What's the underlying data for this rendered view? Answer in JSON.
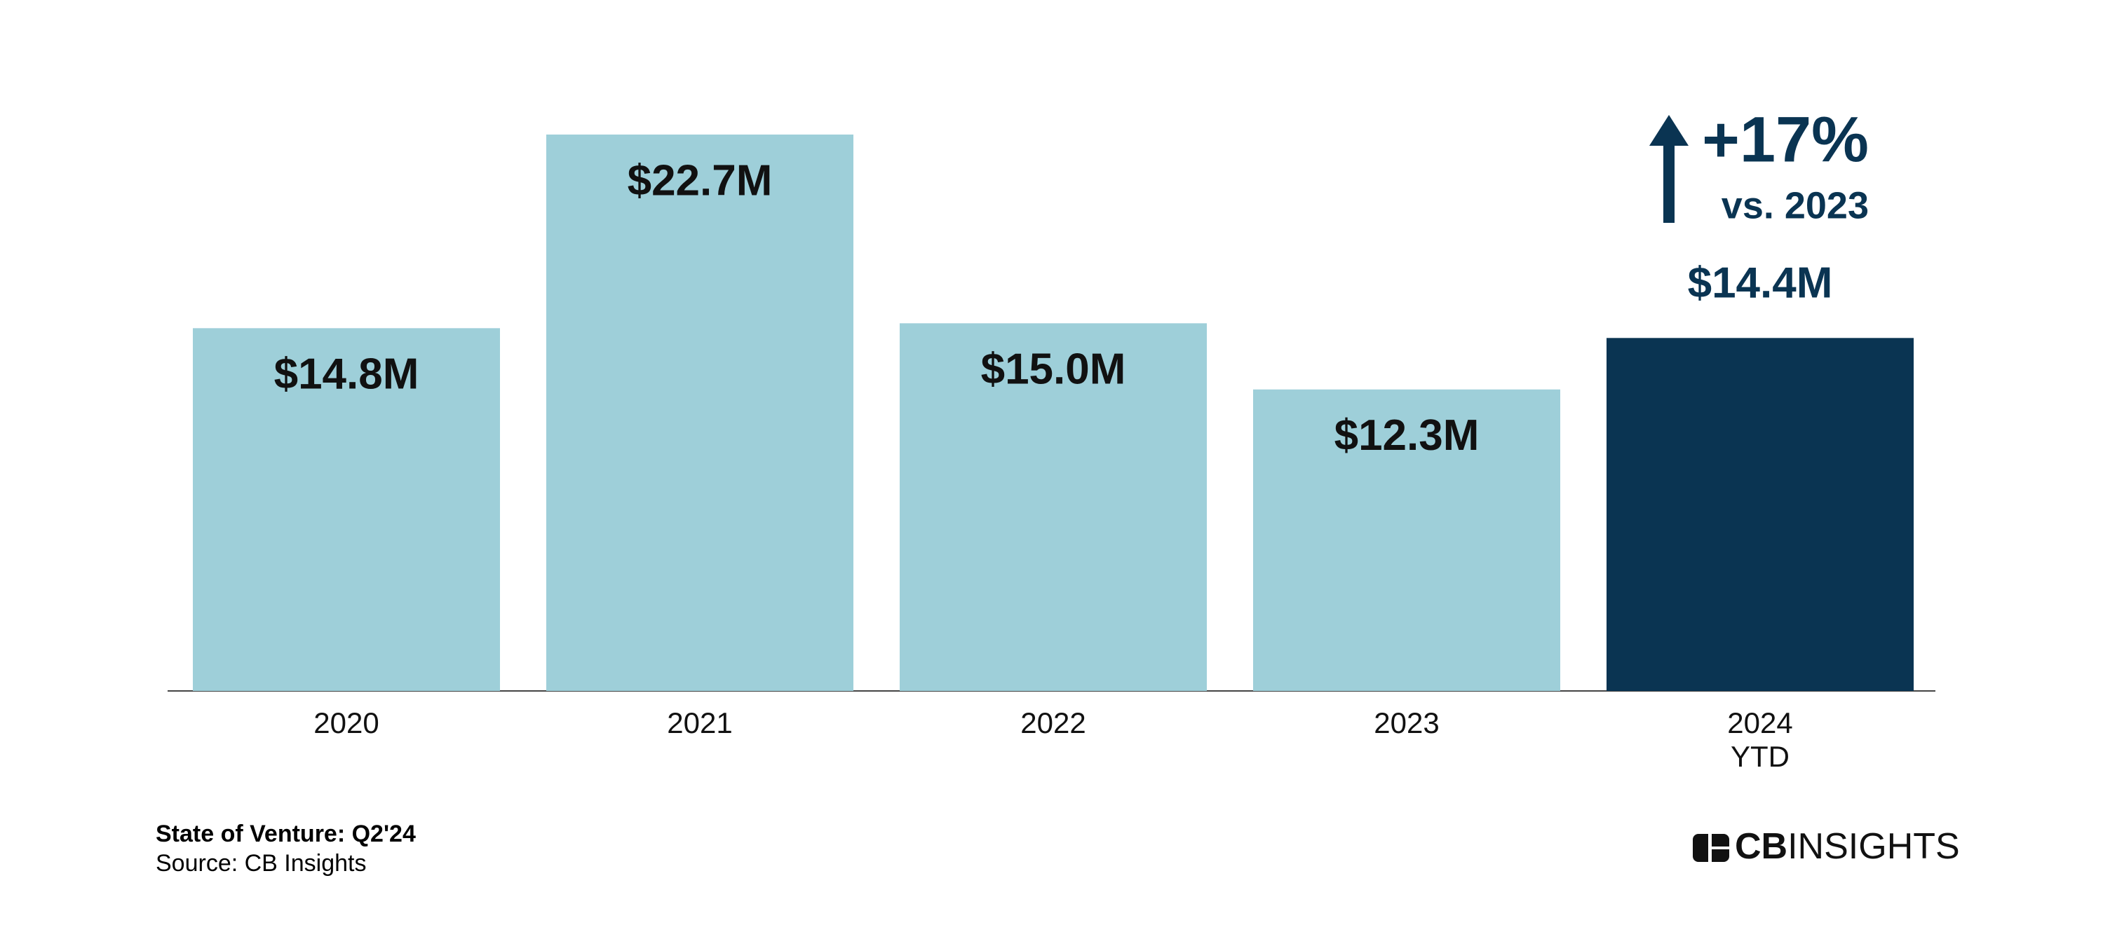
{
  "chart_data": {
    "type": "bar",
    "categories": [
      "2020",
      "2021",
      "2022",
      "2023",
      [
        "2024",
        "YTD"
      ]
    ],
    "values": [
      14.8,
      22.7,
      15.0,
      12.3,
      14.4
    ],
    "value_labels": [
      "$14.8M",
      "$22.7M",
      "$15.0M",
      "$12.3M",
      "$14.4M"
    ],
    "colors": [
      "#9ecfd9",
      "#9ecfd9",
      "#9ecfd9",
      "#9ecfd9",
      "#0a3452"
    ],
    "annotations": [
      "+17%",
      "vs. 2023"
    ],
    "title": "State of Venture: Q2'24",
    "source": "Source: CB Insights"
  },
  "logo": [
    "CB",
    "INSIGHTS"
  ]
}
